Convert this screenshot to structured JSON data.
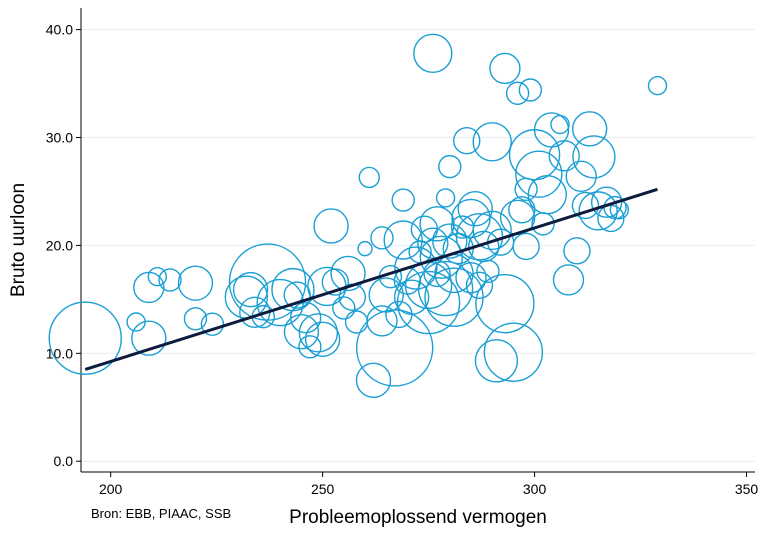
{
  "chart_data": {
    "type": "scatter",
    "title": "",
    "xlabel": "Probleemoplossend vermogen",
    "ylabel": "Bruto uurloon",
    "xlim": [
      193,
      352
    ],
    "ylim": [
      -1,
      42
    ],
    "x_ticks": [
      200,
      250,
      300,
      350
    ],
    "y_ticks": [
      0,
      10,
      20,
      30,
      40
    ],
    "y_tick_labels": [
      "0.0",
      "10.0",
      "20.0",
      "30.0",
      "40.0"
    ],
    "grid": "horizontal",
    "colors": {
      "bubble": "#1a9fd4",
      "fit_line": "#0d1b3e",
      "grid": "#e8eef2",
      "axis": "#000000"
    },
    "fit_line": {
      "x": [
        194,
        329
      ],
      "y": [
        8.5,
        25.2
      ]
    },
    "points": [
      {
        "x": 194,
        "y": 11.4,
        "r": 36
      },
      {
        "x": 206,
        "y": 12.9,
        "r": 9
      },
      {
        "x": 209,
        "y": 11.4,
        "r": 17
      },
      {
        "x": 209,
        "y": 16.1,
        "r": 15
      },
      {
        "x": 211,
        "y": 17.1,
        "r": 9
      },
      {
        "x": 214,
        "y": 16.8,
        "r": 11
      },
      {
        "x": 220,
        "y": 16.5,
        "r": 17
      },
      {
        "x": 220,
        "y": 13.2,
        "r": 11
      },
      {
        "x": 224,
        "y": 12.7,
        "r": 11
      },
      {
        "x": 232,
        "y": 15.2,
        "r": 21
      },
      {
        "x": 233,
        "y": 15.9,
        "r": 17
      },
      {
        "x": 234,
        "y": 13.8,
        "r": 15
      },
      {
        "x": 236,
        "y": 13.4,
        "r": 11
      },
      {
        "x": 237,
        "y": 16.6,
        "r": 38
      },
      {
        "x": 240,
        "y": 14.7,
        "r": 23
      },
      {
        "x": 243,
        "y": 15.9,
        "r": 21
      },
      {
        "x": 244,
        "y": 15.4,
        "r": 13
      },
      {
        "x": 245,
        "y": 12.0,
        "r": 17
      },
      {
        "x": 246,
        "y": 13.3,
        "r": 15
      },
      {
        "x": 247,
        "y": 10.6,
        "r": 11
      },
      {
        "x": 249,
        "y": 11.9,
        "r": 19
      },
      {
        "x": 250,
        "y": 11.3,
        "r": 17
      },
      {
        "x": 251,
        "y": 16.2,
        "r": 19
      },
      {
        "x": 252,
        "y": 21.8,
        "r": 17
      },
      {
        "x": 253,
        "y": 16.6,
        "r": 13
      },
      {
        "x": 255,
        "y": 14.2,
        "r": 11
      },
      {
        "x": 256,
        "y": 17.4,
        "r": 17
      },
      {
        "x": 257,
        "y": 15.2,
        "r": 13
      },
      {
        "x": 258,
        "y": 12.9,
        "r": 11
      },
      {
        "x": 260,
        "y": 19.7,
        "r": 7
      },
      {
        "x": 261,
        "y": 26.3,
        "r": 10
      },
      {
        "x": 262,
        "y": 7.5,
        "r": 17
      },
      {
        "x": 264,
        "y": 13.0,
        "r": 15
      },
      {
        "x": 264,
        "y": 20.7,
        "r": 11
      },
      {
        "x": 265,
        "y": 15.4,
        "r": 17
      },
      {
        "x": 266,
        "y": 17.1,
        "r": 11
      },
      {
        "x": 267,
        "y": 10.5,
        "r": 38
      },
      {
        "x": 268,
        "y": 13.6,
        "r": 13
      },
      {
        "x": 269,
        "y": 24.2,
        "r": 11
      },
      {
        "x": 269,
        "y": 20.5,
        "r": 19
      },
      {
        "x": 270,
        "y": 16.7,
        "r": 13
      },
      {
        "x": 271,
        "y": 15.2,
        "r": 17
      },
      {
        "x": 272,
        "y": 17.9,
        "r": 21
      },
      {
        "x": 273,
        "y": 19.4,
        "r": 11
      },
      {
        "x": 274,
        "y": 21.5,
        "r": 13
      },
      {
        "x": 275,
        "y": 16.3,
        "r": 23
      },
      {
        "x": 275,
        "y": 14.7,
        "r": 31
      },
      {
        "x": 276,
        "y": 37.8,
        "r": 19
      },
      {
        "x": 276,
        "y": 20.2,
        "r": 15
      },
      {
        "x": 277,
        "y": 22.0,
        "r": 17
      },
      {
        "x": 277,
        "y": 17.4,
        "r": 13
      },
      {
        "x": 278,
        "y": 18.9,
        "r": 21
      },
      {
        "x": 279,
        "y": 24.4,
        "r": 9
      },
      {
        "x": 279,
        "y": 16.0,
        "r": 27
      },
      {
        "x": 280,
        "y": 20.4,
        "r": 17
      },
      {
        "x": 280,
        "y": 27.3,
        "r": 11
      },
      {
        "x": 281,
        "y": 15.2,
        "r": 29
      },
      {
        "x": 281,
        "y": 17.4,
        "r": 19
      },
      {
        "x": 282,
        "y": 19.7,
        "r": 15
      },
      {
        "x": 283,
        "y": 21.7,
        "r": 11
      },
      {
        "x": 284,
        "y": 29.7,
        "r": 13
      },
      {
        "x": 285,
        "y": 22.5,
        "r": 19
      },
      {
        "x": 285,
        "y": 17.0,
        "r": 15
      },
      {
        "x": 286,
        "y": 23.4,
        "r": 17
      },
      {
        "x": 287,
        "y": 20.8,
        "r": 23
      },
      {
        "x": 287,
        "y": 16.3,
        "r": 13
      },
      {
        "x": 288,
        "y": 19.9,
        "r": 15
      },
      {
        "x": 289,
        "y": 17.6,
        "r": 11
      },
      {
        "x": 290,
        "y": 29.6,
        "r": 19
      },
      {
        "x": 290,
        "y": 21.4,
        "r": 19
      },
      {
        "x": 291,
        "y": 9.3,
        "r": 21
      },
      {
        "x": 292,
        "y": 20.3,
        "r": 13
      },
      {
        "x": 293,
        "y": 36.4,
        "r": 15
      },
      {
        "x": 293,
        "y": 14.6,
        "r": 29
      },
      {
        "x": 295,
        "y": 10.1,
        "r": 29
      },
      {
        "x": 296,
        "y": 34.1,
        "r": 11
      },
      {
        "x": 296,
        "y": 22.6,
        "r": 17
      },
      {
        "x": 297,
        "y": 23.3,
        "r": 13
      },
      {
        "x": 298,
        "y": 19.9,
        "r": 13
      },
      {
        "x": 298,
        "y": 25.2,
        "r": 11
      },
      {
        "x": 299,
        "y": 34.4,
        "r": 11
      },
      {
        "x": 300,
        "y": 28.4,
        "r": 25
      },
      {
        "x": 301,
        "y": 26.6,
        "r": 23
      },
      {
        "x": 302,
        "y": 22.0,
        "r": 11
      },
      {
        "x": 303,
        "y": 24.7,
        "r": 19
      },
      {
        "x": 304,
        "y": 30.7,
        "r": 17
      },
      {
        "x": 306,
        "y": 31.2,
        "r": 9
      },
      {
        "x": 307,
        "y": 28.3,
        "r": 15
      },
      {
        "x": 308,
        "y": 16.8,
        "r": 15
      },
      {
        "x": 310,
        "y": 19.5,
        "r": 13
      },
      {
        "x": 311,
        "y": 26.4,
        "r": 15
      },
      {
        "x": 312,
        "y": 23.7,
        "r": 13
      },
      {
        "x": 313,
        "y": 30.8,
        "r": 17
      },
      {
        "x": 314,
        "y": 28.2,
        "r": 21
      },
      {
        "x": 315,
        "y": 23.2,
        "r": 19
      },
      {
        "x": 317,
        "y": 24.0,
        "r": 15
      },
      {
        "x": 318,
        "y": 22.5,
        "r": 13
      },
      {
        "x": 319,
        "y": 23.5,
        "r": 11
      },
      {
        "x": 320,
        "y": 23.3,
        "r": 9
      },
      {
        "x": 329,
        "y": 34.8,
        "r": 9
      }
    ]
  },
  "source_note": "Bron: EBB, PIAAC, SSB"
}
